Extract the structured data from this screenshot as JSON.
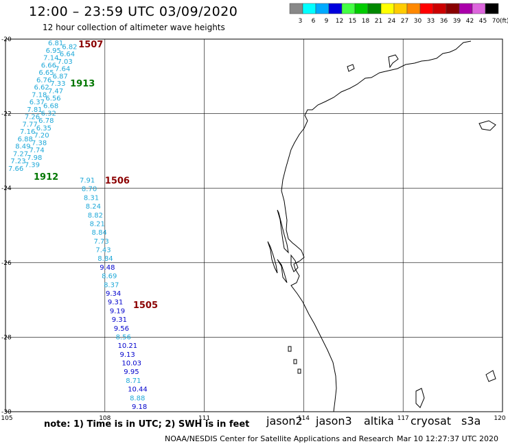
{
  "header": {
    "title": "12:00 – 23:59 UTC 03/09/2020",
    "subtitle": "12 hour collection of altimeter wave heights"
  },
  "legend": {
    "unit": "(ft)",
    "bins": [
      {
        "label": "3",
        "color": "#888888"
      },
      {
        "label": "6",
        "color": "#00ffff"
      },
      {
        "label": "9",
        "color": "#00aaff"
      },
      {
        "label": "12",
        "color": "#0000dd"
      },
      {
        "label": "15",
        "color": "#44ff44"
      },
      {
        "label": "18",
        "color": "#00cc00"
      },
      {
        "label": "21",
        "color": "#008800"
      },
      {
        "label": "24",
        "color": "#ffff00"
      },
      {
        "label": "27",
        "color": "#ffcc00"
      },
      {
        "label": "30",
        "color": "#ff8800"
      },
      {
        "label": "33",
        "color": "#ff0000"
      },
      {
        "label": "36",
        "color": "#cc0000"
      },
      {
        "label": "39",
        "color": "#880000"
      },
      {
        "label": "42",
        "color": "#aa00aa"
      },
      {
        "label": "45",
        "color": "#dd66dd"
      },
      {
        "label": "70",
        "color": "#000000"
      }
    ]
  },
  "map": {
    "lon_range": [
      105,
      120
    ],
    "lat_range": [
      -30,
      -20
    ],
    "lon_ticks": [
      "105",
      "108",
      "111",
      "114",
      "117",
      "120"
    ],
    "lat_ticks": [
      "-20",
      "-22",
      "-24",
      "-26",
      "-28",
      "-30"
    ],
    "grid": true,
    "colors": {
      "light": "#1ea8d8",
      "dark": "#0000cc",
      "label_red": "#8b0000",
      "label_green": "#007700"
    }
  },
  "passes": [
    {
      "label": "1507",
      "color": "#8b0000",
      "lon": 107.2,
      "lat": -20.15
    },
    {
      "label": "1913",
      "color": "#007700",
      "lon": 106.95,
      "lat": -21.2
    },
    {
      "label": "1912",
      "color": "#007700",
      "lon": 105.85,
      "lat": -23.7
    },
    {
      "label": "1506",
      "color": "#8b0000",
      "lon": 108.0,
      "lat": -23.8
    },
    {
      "label": "1505",
      "color": "#8b0000",
      "lon": 108.85,
      "lat": -27.15
    }
  ],
  "track_a_values": [
    "6.81",
    "6.82",
    "6.95",
    "6.64",
    "7.14",
    "7.03",
    "6.66",
    "7.64",
    "6.65",
    "6.87",
    "6.76",
    "7.33",
    "6.62",
    "7.47",
    "7.18",
    "6.56",
    "6.37",
    "6.68",
    "7.81",
    "6.32",
    "7.26",
    "6.78",
    "7.77",
    "6.35",
    "7.16",
    "7.20",
    "6.88",
    "7.38",
    "8.49",
    "7.74",
    "7.27",
    "7.98",
    "7.23",
    "7.39",
    "7.66"
  ],
  "track_b_values": [
    "7.91",
    "8.70",
    "8.31",
    "8.24",
    "8.82",
    "8.21",
    "8.84",
    "7.73",
    "7.43",
    "8.84",
    "9.48",
    "8.69",
    "8.37",
    "9.34",
    "9.31",
    "9.19",
    "9.31",
    "9.56",
    "8.56",
    "10.21",
    "9.13",
    "10.03",
    "9.95",
    "8.71",
    "10.44",
    "8.88",
    "9.18"
  ],
  "footer": {
    "note": "note:  1) Time is in UTC;  2) SWH is in feet",
    "satellites": [
      {
        "name": "jason2",
        "color": "#0000dd"
      },
      {
        "name": "jason3",
        "color": "#009900"
      },
      {
        "name": "altika",
        "color": "#ff9900"
      },
      {
        "name": "cryosat",
        "color": "#ee0000"
      },
      {
        "name": "s3a",
        "color": "#cc0000"
      }
    ],
    "credit": "NOAA/NESDIS Center for Satellite Applications and Research",
    "timestamp": "Mar 10 12:27:37 UTC 2020"
  }
}
